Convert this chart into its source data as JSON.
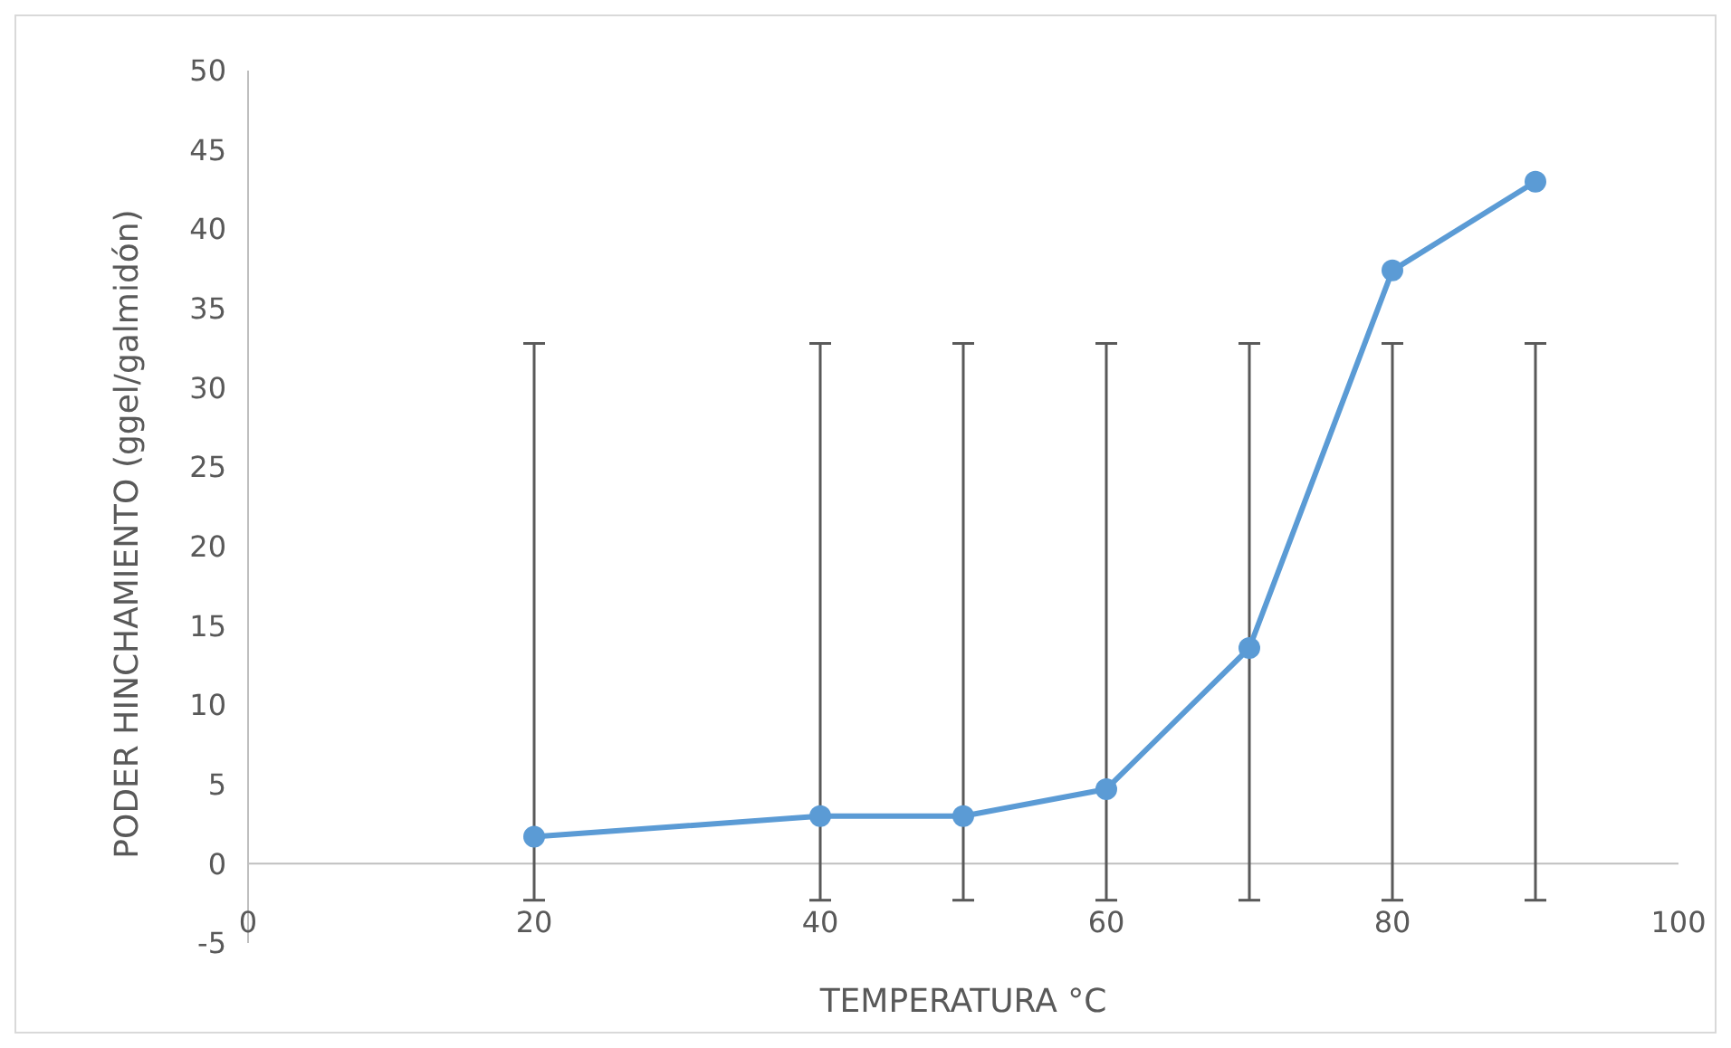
{
  "chart_data": {
    "type": "line",
    "xlabel": "TEMPERATURA °C",
    "ylabel": "PODER HINCHAMIENTO (ggel/galmidón)",
    "x": [
      20,
      40,
      50,
      60,
      70,
      80,
      90
    ],
    "series": [
      {
        "color": "#5b9bd5",
        "values": [
          1.7,
          3.0,
          3.0,
          4.7,
          13.6,
          37.4,
          43.0
        ],
        "errors": [
          [
            -2.3,
            32.8
          ],
          [
            -2.3,
            32.8
          ],
          [
            -2.3,
            32.8
          ],
          [
            -2.3,
            32.8
          ],
          [
            -2.3,
            32.8
          ],
          [
            -2.3,
            32.8
          ],
          [
            -2.3,
            32.8
          ]
        ]
      }
    ],
    "xlim": [
      0,
      100
    ],
    "xticks": [
      0,
      20,
      40,
      60,
      80,
      100
    ],
    "ylim": [
      -5,
      50
    ],
    "yticks": [
      -5,
      0,
      5,
      10,
      15,
      20,
      25,
      30,
      35,
      40,
      45,
      50
    ],
    "marker": "circle",
    "line_style": "solid",
    "grid": false
  }
}
